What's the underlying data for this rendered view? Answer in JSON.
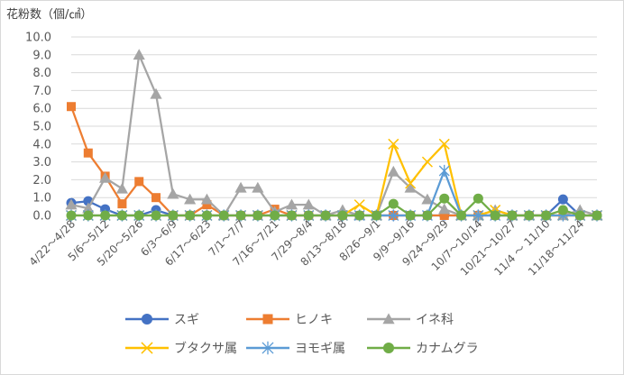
{
  "chart_data": {
    "type": "line",
    "ylabel": "花粉数（個/㎠）",
    "ylim": [
      0,
      10
    ],
    "yticks": [
      0,
      1,
      2,
      3,
      4,
      5,
      6,
      7,
      8,
      9,
      10
    ],
    "ytick_labels": [
      "0.0",
      "1.0",
      "2.0",
      "3.0",
      "4.0",
      "5.0",
      "6.0",
      "7.0",
      "8.0",
      "9.0",
      "10.0"
    ],
    "grid": true,
    "legend_position": "bottom",
    "x_tick_labels": [
      {
        "index": 0,
        "label": "4/22～4/28"
      },
      {
        "index": 2,
        "label": "5/6～5/12"
      },
      {
        "index": 4,
        "label": "5/20～5/26"
      },
      {
        "index": 6,
        "label": "6/3～6/9"
      },
      {
        "index": 8,
        "label": "6/17～6/23"
      },
      {
        "index": 10,
        "label": "7/1～7/7"
      },
      {
        "index": 12,
        "label": "7/16～7/21"
      },
      {
        "index": 14,
        "label": "7/29～8/4"
      },
      {
        "index": 16,
        "label": "8/13～8/18"
      },
      {
        "index": 18,
        "label": "8/26～9/1"
      },
      {
        "index": 20,
        "label": "9/9～9/16"
      },
      {
        "index": 22,
        "label": "9/24～9/29"
      },
      {
        "index": 24,
        "label": "10/7～10/14"
      },
      {
        "index": 26,
        "label": "10/21～10/27"
      },
      {
        "index": 28,
        "label": "11/4 ～ 11/10"
      },
      {
        "index": 30,
        "label": "11/18～11/24"
      }
    ],
    "series": [
      {
        "name": "スギ",
        "color": "#4472c4",
        "marker": "circle",
        "values": [
          0.7,
          0.8,
          0.35,
          0,
          0,
          0.3,
          0,
          0,
          0,
          0,
          0,
          0,
          0,
          0,
          0,
          0,
          0,
          0,
          0,
          0,
          0,
          0,
          0,
          0,
          0,
          0,
          0,
          0,
          0,
          0.9,
          0,
          0
        ]
      },
      {
        "name": "ヒノキ",
        "color": "#ed7d31",
        "marker": "square",
        "values": [
          6.1,
          3.5,
          2.2,
          0.65,
          1.9,
          1,
          0,
          0,
          0.6,
          0,
          0,
          0,
          0.35,
          0,
          0,
          0,
          0,
          0,
          0,
          0,
          0,
          0,
          0,
          0,
          0,
          0,
          0,
          0,
          0,
          0,
          0,
          0
        ]
      },
      {
        "name": "イネ科",
        "color": "#a5a5a5",
        "marker": "triangle",
        "values": [
          0.6,
          0.4,
          2.1,
          1.5,
          9,
          6.8,
          1.2,
          0.9,
          0.9,
          0,
          1.55,
          1.55,
          0.2,
          0.6,
          0.6,
          0,
          0.3,
          0,
          0,
          2.45,
          1.55,
          0.9,
          0.35,
          0,
          0,
          0.3,
          0,
          0,
          0,
          0,
          0.3,
          0
        ]
      },
      {
        "name": "ブタクサ属",
        "color": "#ffc000",
        "marker": "x",
        "values": [
          0,
          0,
          0,
          0,
          0,
          0,
          0,
          0,
          0,
          0,
          0,
          0,
          0,
          0,
          0,
          0,
          0,
          0.6,
          0,
          4,
          1.8,
          3,
          4,
          0,
          0,
          0.3,
          0,
          0,
          0,
          0,
          0,
          0
        ]
      },
      {
        "name": "ヨモギ属",
        "color": "#5b9bd5",
        "marker": "star",
        "values": [
          0,
          0,
          0,
          0,
          0,
          0,
          0,
          0,
          0,
          0,
          0,
          0,
          0,
          0,
          0,
          0,
          0,
          0,
          0,
          0,
          0,
          0,
          2.5,
          0,
          0,
          0,
          0,
          0,
          0,
          0,
          0,
          0
        ]
      },
      {
        "name": "カナムグラ",
        "color": "#70ad47",
        "marker": "circle",
        "values": [
          0,
          0,
          0,
          0,
          0,
          0,
          0,
          0,
          0,
          0,
          0,
          0,
          0,
          0,
          0,
          0,
          0,
          0,
          0,
          0.65,
          0,
          0,
          0.95,
          0,
          0.95,
          0,
          0,
          0,
          0,
          0.3,
          0,
          0
        ]
      }
    ]
  }
}
